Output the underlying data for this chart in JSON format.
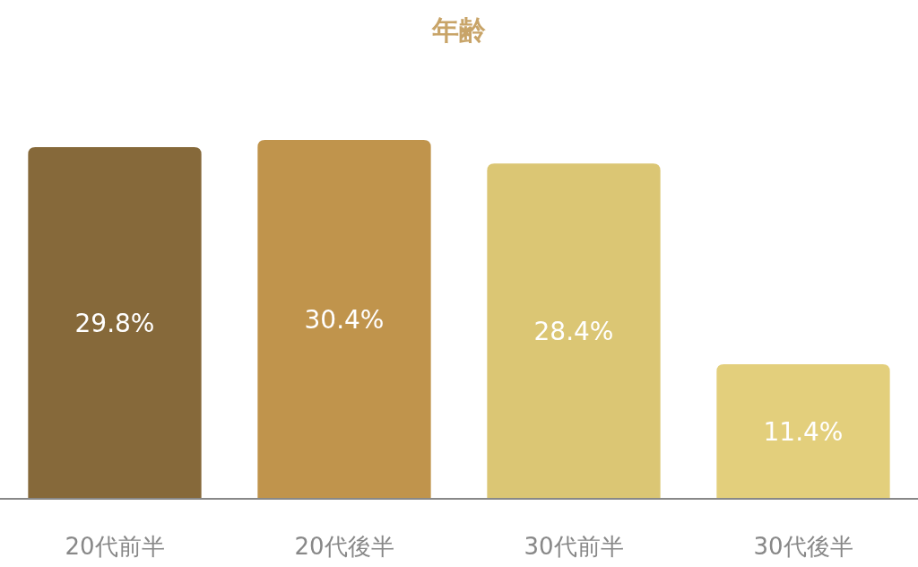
{
  "chart_data": {
    "type": "bar",
    "title": "年齢",
    "categories": [
      "20代前半",
      "20代後半",
      "30代前半",
      "30代後半"
    ],
    "values": [
      29.8,
      30.4,
      28.4,
      11.4
    ],
    "value_labels": [
      "29.8%",
      "30.4%",
      "28.4%",
      "11.4%"
    ],
    "colors": [
      "#86693a",
      "#c0944c",
      "#dbc674",
      "#e3cf7c"
    ]
  }
}
